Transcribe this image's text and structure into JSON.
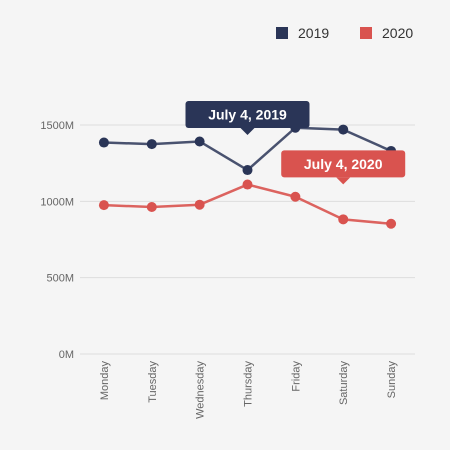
{
  "chart_data": {
    "type": "line",
    "title": "",
    "xlabel": "",
    "ylabel": "",
    "categories": [
      "Monday",
      "Tuesday",
      "Wednesday",
      "Thursday",
      "Friday",
      "Saturday",
      "Sunday"
    ],
    "ylim": [
      0,
      1500
    ],
    "yticks": [
      0,
      500,
      1000,
      1500
    ],
    "ytick_labels": [
      "0M",
      "500M",
      "1000M",
      "1500M"
    ],
    "grid": true,
    "legend_position": "top-right",
    "series": [
      {
        "name": "2019",
        "color": "#2a3557",
        "values": [
          1385,
          1375,
          1392,
          1205,
          1482,
          1470,
          1330
        ]
      },
      {
        "name": "2020",
        "color": "#d9534f",
        "values": [
          975,
          963,
          978,
          1110,
          1030,
          882,
          853
        ]
      }
    ],
    "annotations": [
      {
        "text": "July 4, 2019",
        "series": 0,
        "category": "Thursday",
        "color": "#2a3557"
      },
      {
        "text": "July 4, 2020",
        "series": 1,
        "category": "Saturday",
        "color": "#d9534f"
      }
    ]
  }
}
